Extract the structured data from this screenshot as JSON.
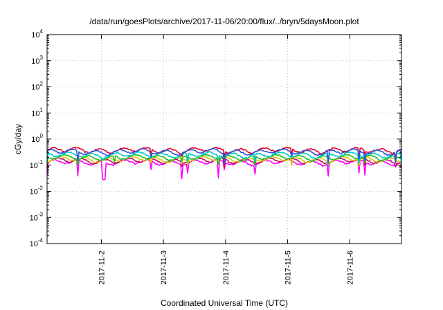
{
  "chart_data": {
    "type": "line",
    "title": "/data/run/goesPlots/archive/2017-11-06/20:00/flux/../bryn/5daysMoon.plot",
    "xlabel": "Coordinated Universal Time (UTC)",
    "ylabel": "cGy/day",
    "xlim": [
      "2017-11-01T03:00",
      "2017-11-06T20:00"
    ],
    "ylim": [
      0.0001,
      10000
    ],
    "yscale": "log",
    "grid": true,
    "x_tick_labels": [
      "2017-11-2",
      "2017-11-3",
      "2017-11-4",
      "2017-11-5",
      "2017-11-6"
    ],
    "x_tick_values": [
      "2017-11-02T00:00",
      "2017-11-03T00:00",
      "2017-11-04T00:00",
      "2017-11-05T00:00",
      "2017-11-06T00:00"
    ],
    "y_ticks": [
      {
        "value": 0.0001,
        "base": "10",
        "exp": "-4"
      },
      {
        "value": 0.001,
        "base": "10",
        "exp": "-3"
      },
      {
        "value": 0.01,
        "base": "10",
        "exp": "-2"
      },
      {
        "value": 0.1,
        "base": "10",
        "exp": "-1"
      },
      {
        "value": 1,
        "base": "10",
        "exp": "0"
      },
      {
        "value": 10,
        "base": "10",
        "exp": "1"
      },
      {
        "value": 100,
        "base": "10",
        "exp": "2"
      },
      {
        "value": 1000,
        "base": "10",
        "exp": "3"
      },
      {
        "value": 10000,
        "base": "10",
        "exp": "4"
      }
    ],
    "series": [
      {
        "color": "#e8002a",
        "level": 0.38,
        "dip_min": 0.22
      },
      {
        "color": "#2d55d8",
        "level": 0.33,
        "dip_min": 0.12
      },
      {
        "color": "#00c8c8",
        "level": 0.25,
        "dip_min": 0.1
      },
      {
        "color": "#20c020",
        "level": 0.2,
        "dip_min": 0.1
      },
      {
        "color": "#d8c800",
        "level": 0.17,
        "dip_min": 0.09
      },
      {
        "color": "#d00070",
        "level": 0.15,
        "dip_min": 0.08
      },
      {
        "color": "#ff00ff",
        "level": 0.13,
        "dip_min": 0.028
      }
    ]
  }
}
